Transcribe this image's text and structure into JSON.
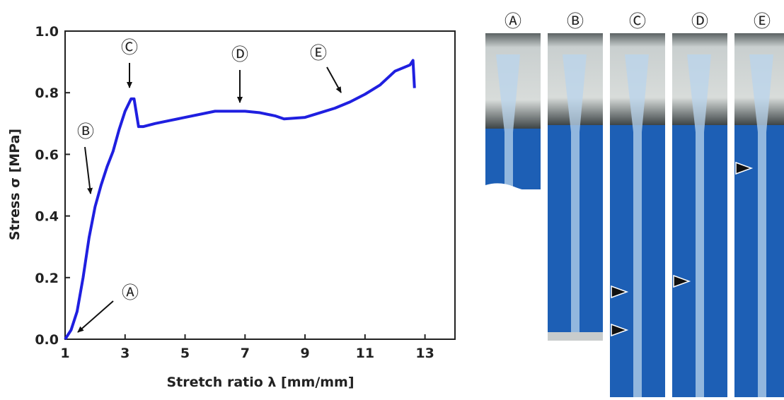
{
  "chart_data": {
    "type": "line",
    "x_label": "Stretch ratio λ [mm/mm]",
    "y_label": "Stress σ [MPa]",
    "x": [
      1,
      1.2,
      1.4,
      1.6,
      1.8,
      2.0,
      2.2,
      2.4,
      2.6,
      2.8,
      3.0,
      3.2,
      3.3,
      3.45,
      3.6,
      4,
      4.5,
      5,
      6,
      7,
      7.5,
      8,
      8.3,
      9,
      9.5,
      10,
      10.5,
      11,
      11.5,
      12,
      12.5,
      12.6,
      12.65
    ],
    "series": [
      {
        "color": "#1f1fe0",
        "values": [
          0,
          0.03,
          0.09,
          0.2,
          0.33,
          0.43,
          0.5,
          0.56,
          0.61,
          0.68,
          0.74,
          0.78,
          0.78,
          0.69,
          0.69,
          0.7,
          0.71,
          0.72,
          0.74,
          0.74,
          0.735,
          0.725,
          0.715,
          0.72,
          0.735,
          0.75,
          0.77,
          0.795,
          0.825,
          0.87,
          0.89,
          0.905,
          0.815
        ]
      }
    ],
    "xlim": [
      1,
      14
    ],
    "xticks": [
      1,
      3,
      5,
      7,
      9,
      11,
      13
    ],
    "ylim": [
      0,
      1
    ],
    "yticks": [
      {
        "value": 0,
        "label": "0.0"
      },
      {
        "value": 0.2,
        "label": "0.2"
      },
      {
        "value": 0.4,
        "label": "0.4"
      },
      {
        "value": 0.6,
        "label": "0.6"
      },
      {
        "value": 0.8,
        "label": "0.8"
      },
      {
        "value": 1,
        "label": "1.0"
      }
    ],
    "annotations": [
      "Ⓐ",
      "Ⓑ",
      "Ⓒ",
      "Ⓓ",
      "Ⓔ"
    ],
    "panels": [
      "Ⓐ",
      "Ⓑ",
      "Ⓒ",
      "Ⓓ",
      "Ⓔ"
    ]
  }
}
